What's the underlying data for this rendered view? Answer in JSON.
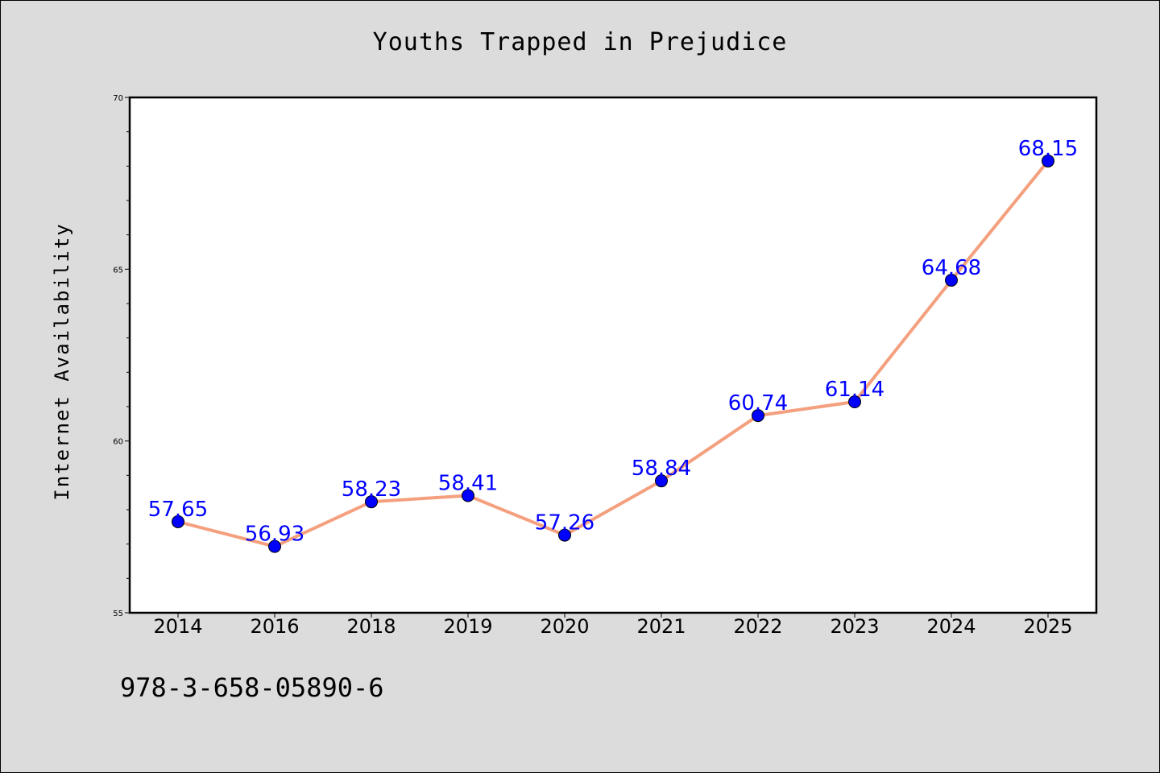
{
  "chart_data": {
    "type": "line",
    "title": "Youths Trapped in Prejudice",
    "xlabel": "",
    "ylabel": "Internet Availability",
    "categories": [
      "2014",
      "2016",
      "2018",
      "2019",
      "2020",
      "2021",
      "2022",
      "2023",
      "2024",
      "2025"
    ],
    "series": [
      {
        "values": [
          57.65,
          56.93,
          58.23,
          58.41,
          57.26,
          58.84,
          60.74,
          61.14,
          64.68,
          68.15
        ]
      }
    ],
    "data_labels": [
      "57.65",
      "56.93",
      "58.23",
      "58.41",
      "57.26",
      "58.84",
      "60.74",
      "61.14",
      "64.68",
      "68.15"
    ],
    "ylim": [
      55,
      70
    ],
    "yticks": [
      55,
      60,
      65,
      70
    ],
    "grid": false,
    "line_color": "#f4a07e",
    "marker_color": "#0000ff",
    "label_color": "#0000ff",
    "background": "#dcdcdc"
  },
  "footer": {
    "isbn": "978-3-658-05890-6"
  }
}
